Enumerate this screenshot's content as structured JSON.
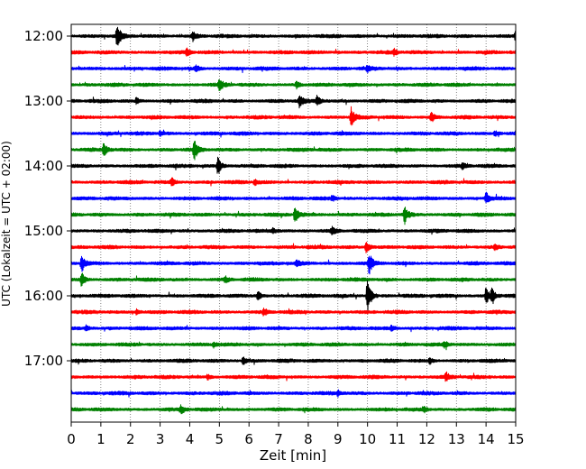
{
  "chart_data": {
    "type": "line",
    "title": "",
    "xlabel": "Zeit  [min]",
    "ylabel": "UTC (Lokalzeit = UTC + 02:00)",
    "xlim": [
      0,
      15
    ],
    "x_ticks": [
      0,
      1,
      2,
      3,
      4,
      5,
      6,
      7,
      8,
      9,
      10,
      11,
      12,
      13,
      14,
      15
    ],
    "x_tick_labels": [
      "0",
      "1",
      "2",
      "3",
      "4",
      "5",
      "6",
      "7",
      "8",
      "9",
      "10",
      "11",
      "12",
      "13",
      "14",
      "15"
    ],
    "y_tick_labels": [
      "12:00",
      "13:00",
      "14:00",
      "15:00",
      "16:00",
      "17:00"
    ],
    "y_tick_traces": [
      0,
      4,
      8,
      12,
      16,
      20
    ],
    "vertical_grid": "dotted at every minute",
    "trace_colors": [
      "#000000",
      "#ff0000",
      "#0000ff",
      "#008000"
    ],
    "traces": [
      {
        "start": "12:00",
        "events": [
          {
            "t": 1.55,
            "amp": 1.4
          },
          {
            "t": 4.1,
            "amp": 0.5
          },
          {
            "t": 15.0,
            "amp": 0.6
          }
        ]
      },
      {
        "start": "12:15",
        "events": [
          {
            "t": 3.9,
            "amp": 0.4
          },
          {
            "t": 10.9,
            "amp": 0.3
          }
        ]
      },
      {
        "start": "12:30",
        "events": [
          {
            "t": 4.2,
            "amp": 0.4
          },
          {
            "t": 10.0,
            "amp": 0.3
          }
        ]
      },
      {
        "start": "12:45",
        "events": [
          {
            "t": 5.0,
            "amp": 0.7
          },
          {
            "t": 7.6,
            "amp": 0.4
          }
        ]
      },
      {
        "start": "13:00",
        "events": [
          {
            "t": 7.7,
            "amp": 0.7
          },
          {
            "t": 8.3,
            "amp": 0.6
          },
          {
            "t": 2.2,
            "amp": 0.3
          }
        ]
      },
      {
        "start": "13:15",
        "events": [
          {
            "t": 9.45,
            "amp": 1.1
          },
          {
            "t": 12.15,
            "amp": 0.6
          }
        ]
      },
      {
        "start": "13:30",
        "events": [
          {
            "t": 3.0,
            "amp": 0.3
          },
          {
            "t": 14.3,
            "amp": 0.3
          }
        ]
      },
      {
        "start": "13:45",
        "events": [
          {
            "t": 1.1,
            "amp": 0.8
          },
          {
            "t": 4.15,
            "amp": 1.3
          }
        ]
      },
      {
        "start": "14:00",
        "events": [
          {
            "t": 4.95,
            "amp": 1.1
          },
          {
            "t": 13.2,
            "amp": 0.3
          }
        ]
      },
      {
        "start": "14:15",
        "events": [
          {
            "t": 3.4,
            "amp": 0.5
          },
          {
            "t": 6.2,
            "amp": 0.3
          }
        ]
      },
      {
        "start": "14:30",
        "events": [
          {
            "t": 14.0,
            "amp": 0.7
          },
          {
            "t": 8.8,
            "amp": 0.3
          }
        ]
      },
      {
        "start": "14:45",
        "events": [
          {
            "t": 7.55,
            "amp": 1.0
          },
          {
            "t": 11.25,
            "amp": 1.0
          }
        ]
      },
      {
        "start": "15:00",
        "events": [
          {
            "t": 8.8,
            "amp": 0.4
          },
          {
            "t": 6.8,
            "amp": 0.3
          }
        ]
      },
      {
        "start": "15:15",
        "events": [
          {
            "t": 9.95,
            "amp": 0.8
          },
          {
            "t": 14.3,
            "amp": 0.3
          }
        ]
      },
      {
        "start": "15:30",
        "events": [
          {
            "t": 0.35,
            "amp": 1.0
          },
          {
            "t": 10.05,
            "amp": 1.3
          },
          {
            "t": 7.6,
            "amp": 0.4
          }
        ]
      },
      {
        "start": "15:45",
        "events": [
          {
            "t": 0.35,
            "amp": 0.8
          },
          {
            "t": 5.2,
            "amp": 0.3
          }
        ]
      },
      {
        "start": "16:00",
        "events": [
          {
            "t": 10.0,
            "amp": 2.3
          },
          {
            "t": 14.0,
            "amp": 1.0
          },
          {
            "t": 14.2,
            "amp": 0.9
          },
          {
            "t": 6.3,
            "amp": 0.5
          }
        ]
      },
      {
        "start": "16:15",
        "events": [
          {
            "t": 6.5,
            "amp": 0.4
          },
          {
            "t": 2.2,
            "amp": 0.3
          }
        ]
      },
      {
        "start": "16:30",
        "events": [
          {
            "t": 0.5,
            "amp": 0.3
          },
          {
            "t": 10.8,
            "amp": 0.3
          }
        ]
      },
      {
        "start": "16:45",
        "events": [
          {
            "t": 4.8,
            "amp": 0.3
          },
          {
            "t": 12.6,
            "amp": 0.3
          }
        ]
      },
      {
        "start": "17:00",
        "events": [
          {
            "t": 5.8,
            "amp": 0.5
          },
          {
            "t": 12.1,
            "amp": 0.3
          }
        ]
      },
      {
        "start": "17:15",
        "events": [
          {
            "t": 12.65,
            "amp": 0.5
          },
          {
            "t": 4.6,
            "amp": 0.3
          }
        ]
      },
      {
        "start": "17:30",
        "events": [
          {
            "t": 9.0,
            "amp": 0.3
          }
        ]
      },
      {
        "start": "17:45",
        "events": [
          {
            "t": 3.7,
            "amp": 0.5
          },
          {
            "t": 11.9,
            "amp": 0.3
          }
        ]
      }
    ]
  }
}
